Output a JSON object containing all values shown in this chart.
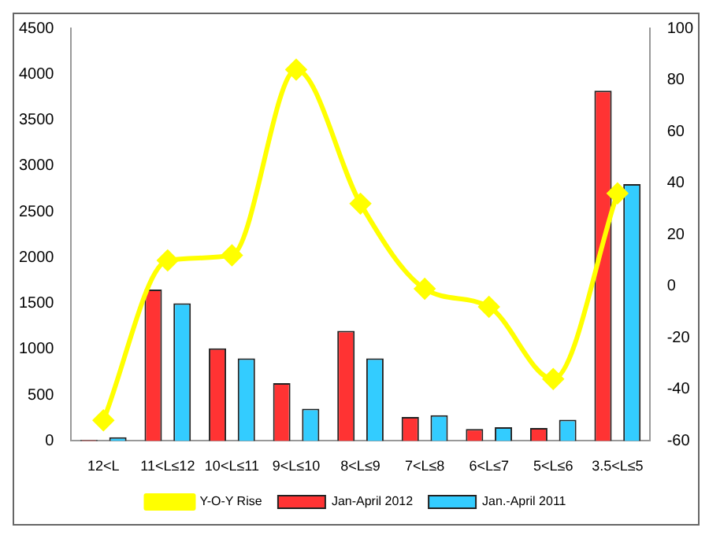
{
  "chart_data": {
    "type": "bar",
    "categories": [
      "12<L",
      "11<L≤12",
      "10<L≤11",
      "9<L≤10",
      "8<L≤9",
      "7<L≤8",
      "6<L≤7",
      "5<L≤6",
      "3.5<L≤5"
    ],
    "series": [
      {
        "name": "Jan-April 2012",
        "color": "#ff3333",
        "values": [
          10,
          1650,
          1010,
          630,
          1200,
          260,
          130,
          140,
          3820
        ]
      },
      {
        "name": "Jan.-April 2011",
        "color": "#33ccff",
        "values": [
          40,
          1500,
          900,
          350,
          900,
          280,
          150,
          230,
          2800
        ]
      },
      {
        "name": "Y-O-Y Rise",
        "type": "line",
        "axis": "y2",
        "color": "#ffff00",
        "marker": "diamond",
        "values": [
          -52,
          10,
          12,
          84,
          32,
          -1,
          -8,
          -36,
          36
        ]
      }
    ],
    "ylim": [
      0,
      4500
    ],
    "yticks": [
      0,
      500,
      1000,
      1500,
      2000,
      2500,
      3000,
      3500,
      4000,
      4500
    ],
    "y2lim": [
      -60,
      100
    ],
    "y2ticks": [
      -60,
      -40,
      -20,
      0,
      20,
      40,
      60,
      80,
      100
    ],
    "grid": false,
    "legend": "bottom"
  }
}
